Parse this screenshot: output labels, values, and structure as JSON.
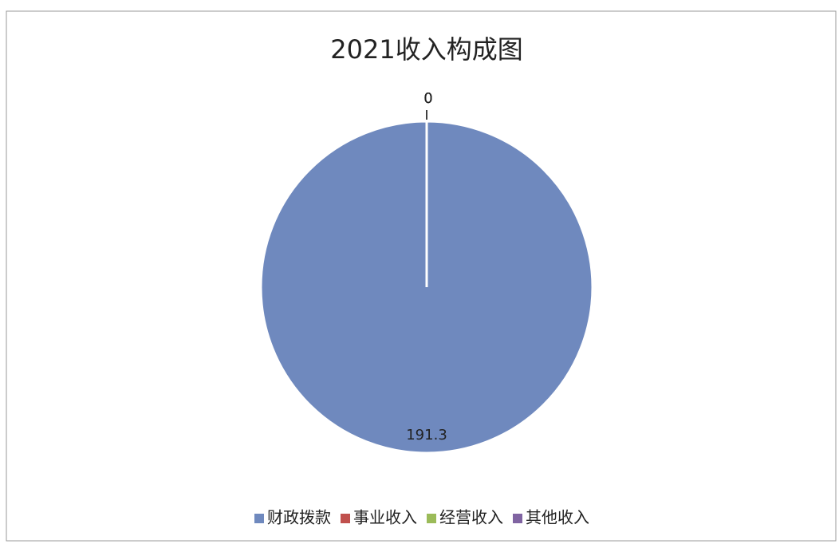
{
  "chart_data": {
    "type": "pie",
    "title": "2021收入构成图",
    "categories": [
      "财政拨款",
      "事业收入",
      "经营收入",
      "其他收入"
    ],
    "values": [
      191.3,
      0,
      0,
      0
    ],
    "colors": [
      "#6f89be",
      "#c0504d",
      "#9bbb59",
      "#8064a2"
    ],
    "legend": "bottom"
  }
}
